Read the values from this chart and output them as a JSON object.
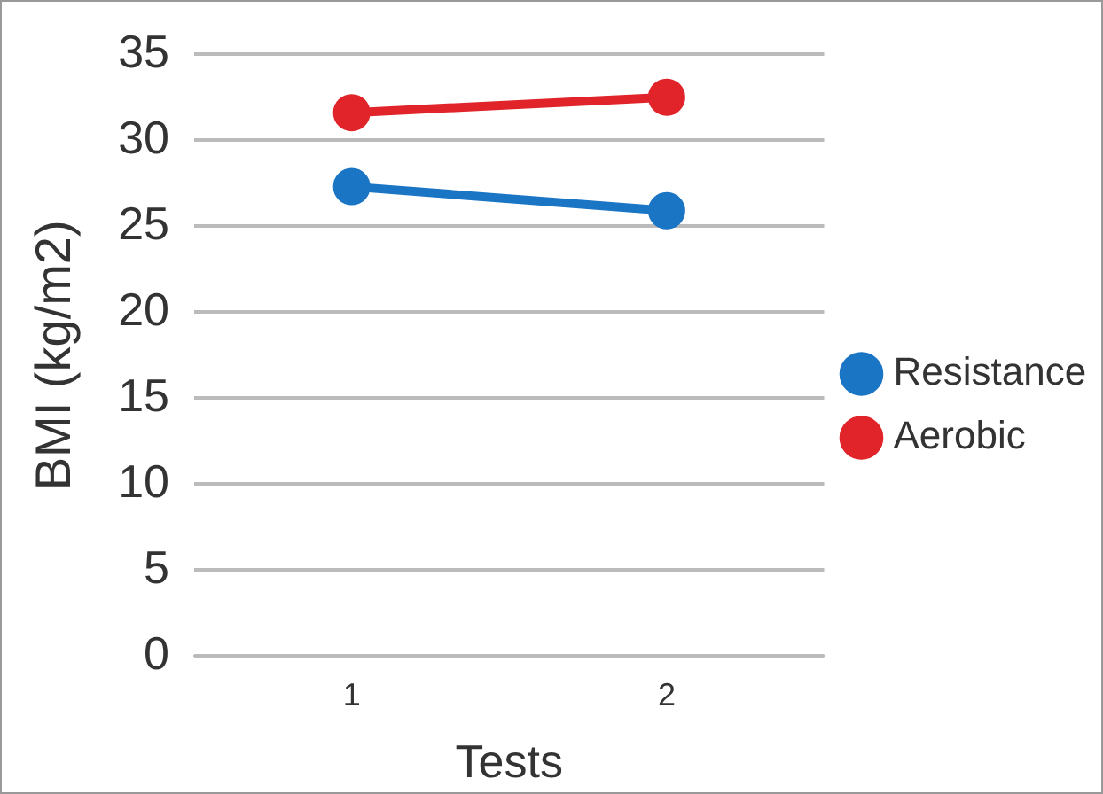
{
  "chart_data": {
    "type": "line",
    "xlabel": "Tests",
    "ylabel": "BMI (kg/m2)",
    "categories": [
      "1",
      "2"
    ],
    "series": [
      {
        "name": "Resistance",
        "color": "#1a75c4",
        "values": [
          27.3,
          25.9
        ]
      },
      {
        "name": "Aerobic",
        "color": "#e0242a",
        "values": [
          31.6,
          32.5
        ]
      }
    ],
    "ylim": [
      0,
      35
    ],
    "yticks": [
      0,
      5,
      10,
      15,
      20,
      25,
      30,
      35
    ],
    "grid": "y",
    "legend": "right",
    "marker": "circle",
    "line_style": "solid"
  }
}
